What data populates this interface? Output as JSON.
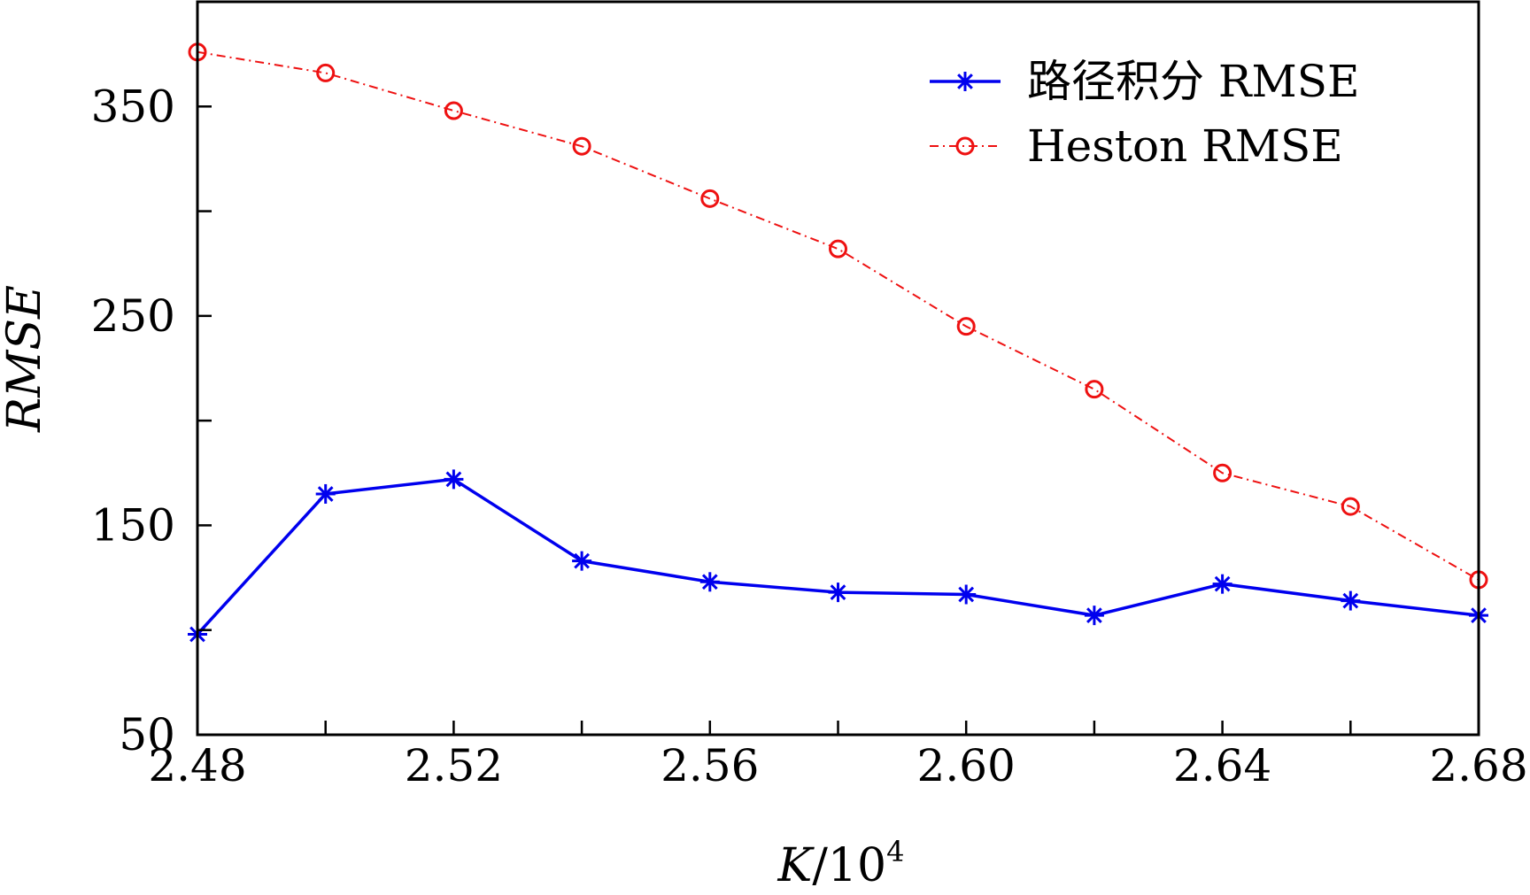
{
  "chart_data": {
    "type": "line",
    "xlabel_main": "K",
    "xlabel_sep": "/10",
    "xlabel_exp": "4",
    "ylabel": "RMSE",
    "xlim": [
      2.48,
      2.68
    ],
    "ylim": [
      50,
      400
    ],
    "x_ticks": [
      2.48,
      2.5,
      2.52,
      2.54,
      2.56,
      2.58,
      2.6,
      2.62,
      2.64,
      2.66,
      2.68
    ],
    "x_tick_labels": [
      "2.48",
      "",
      "2.52",
      "",
      "2.56",
      "",
      "2.60",
      "",
      "2.64",
      "",
      "2.68"
    ],
    "y_ticks": [
      50,
      100,
      150,
      200,
      250,
      300,
      350,
      400
    ],
    "y_tick_labels": [
      "50",
      "",
      "150",
      "",
      "250",
      "",
      "350",
      ""
    ],
    "grid": false,
    "legend_position": "top-right",
    "x": [
      2.48,
      2.5,
      2.52,
      2.54,
      2.56,
      2.58,
      2.6,
      2.62,
      2.64,
      2.66,
      2.68
    ],
    "series": [
      {
        "name": "路径积分 RMSE",
        "color": "#0000ee",
        "line": "solid",
        "marker": "asterisk",
        "values": [
          98,
          165,
          172,
          133,
          123,
          118,
          117,
          107,
          122,
          114,
          107
        ]
      },
      {
        "name": "Heston RMSE",
        "color": "#ee1111",
        "line": "dashdot",
        "marker": "circle",
        "values": [
          376,
          366,
          348,
          331,
          306,
          282,
          245,
          215,
          175,
          159,
          124
        ]
      }
    ]
  }
}
